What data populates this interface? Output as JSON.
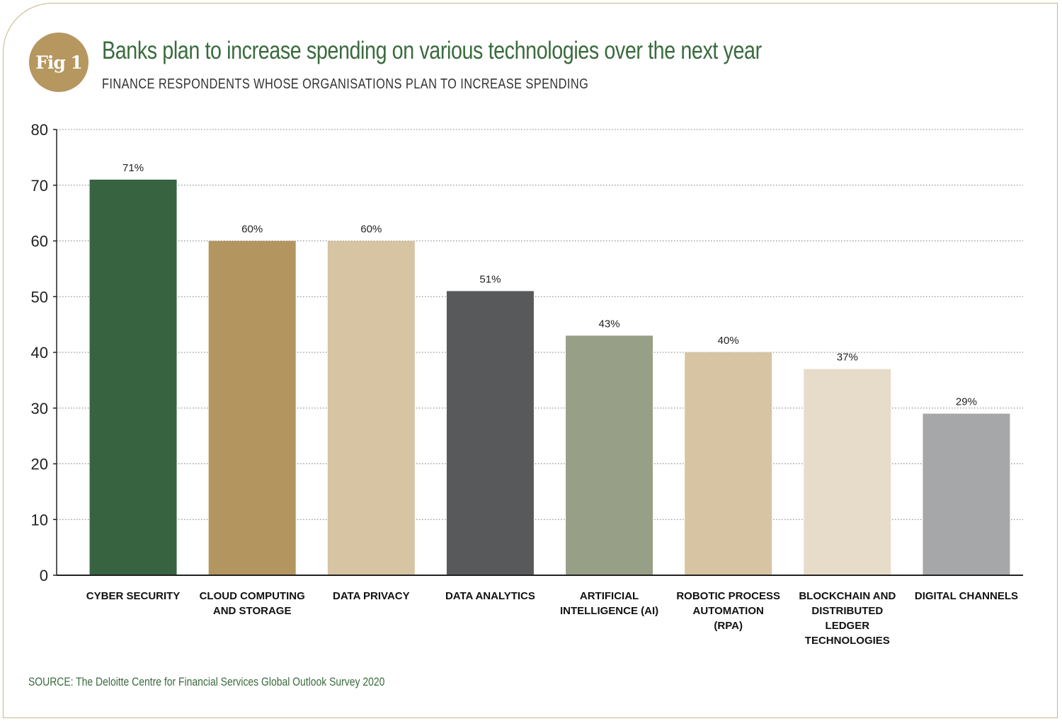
{
  "figure": {
    "badge": "Fig 1",
    "source": "SOURCE: The Deloitte Centre for Financial Services Global Outlook Survey 2020"
  },
  "colors": {
    "title": "#3a6b3e",
    "frame": "#c8b58a",
    "badge": "#b5975f"
  },
  "chart_data": {
    "type": "bar",
    "title": "Banks plan to increase spending on various technologies over the next year",
    "subtitle": "FINANCE RESPONDENTS WHOSE ORGANISATIONS PLAN TO INCREASE SPENDING",
    "xlabel": "",
    "ylabel": "",
    "ylim": [
      0,
      80
    ],
    "yticks": [
      0,
      10,
      20,
      30,
      40,
      50,
      60,
      70,
      80
    ],
    "grid": true,
    "categories": [
      "CYBER SECURITY",
      "CLOUD COMPUTING AND STORAGE",
      "DATA PRIVACY",
      "DATA ANALYTICS",
      "ARTIFICIAL INTELLIGENCE (AI)",
      "ROBOTIC PROCESS AUTOMATION (RPA)",
      "BLOCKCHAIN AND DISTRIBUTED LEDGER TECHNOLOGIES",
      "DIGITAL CHANNELS"
    ],
    "category_lines": [
      [
        "CYBER SECURITY"
      ],
      [
        "CLOUD COMPUTING",
        "AND STORAGE"
      ],
      [
        "DATA PRIVACY"
      ],
      [
        "DATA ANALYTICS"
      ],
      [
        "ARTIFICIAL",
        "INTELLIGENCE (AI)"
      ],
      [
        "ROBOTIC PROCESS",
        "AUTOMATION",
        "(RPA)"
      ],
      [
        "BLOCKCHAIN AND",
        "DISTRIBUTED",
        "LEDGER",
        "TECHNOLOGIES"
      ],
      [
        "DIGITAL CHANNELS"
      ]
    ],
    "values": [
      71,
      60,
      60,
      51,
      43,
      40,
      37,
      29
    ],
    "value_labels": [
      "71%",
      "60%",
      "60%",
      "51%",
      "43%",
      "40%",
      "37%",
      "29%"
    ],
    "bar_colors": [
      "#376341",
      "#b3955f",
      "#d7c4a2",
      "#58595b",
      "#989f87",
      "#d7c4a2",
      "#e7dcc9",
      "#a6a7a9"
    ]
  }
}
